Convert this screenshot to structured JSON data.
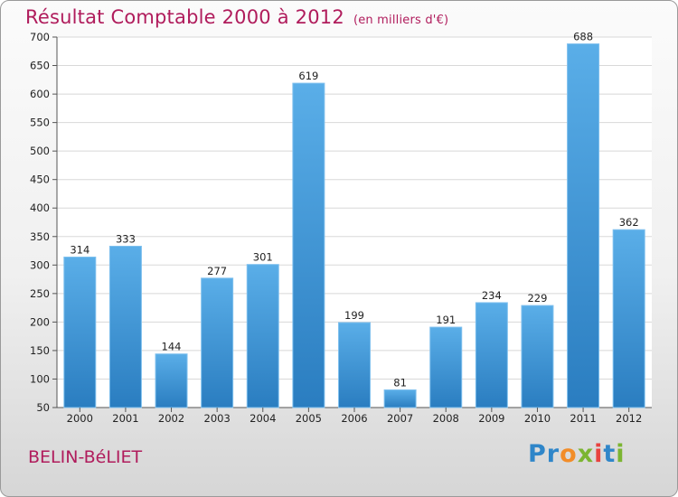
{
  "header": {
    "title": "Résultat Comptable 2000 à 2012",
    "unit": "(en milliers d'€)"
  },
  "footer": {
    "commune": "BELIN-BéLIET",
    "logo_text": "Proxiti"
  },
  "colors": {
    "title": "#b01c5c",
    "bar_light": "#5aaee8",
    "bar_dark": "#2a7dc0",
    "grid": "#d8d8d8",
    "plot_bg": "#ffffff"
  },
  "chart_data": {
    "type": "bar",
    "title": "Résultat Comptable 2000 à 2012",
    "subtitle": "(en milliers d'€)",
    "xlabel": "",
    "ylabel": "",
    "categories": [
      "2000",
      "2001",
      "2002",
      "2003",
      "2004",
      "2005",
      "2006",
      "2007",
      "2008",
      "2009",
      "2010",
      "2011",
      "2012"
    ],
    "values": [
      314,
      333,
      144,
      277,
      301,
      619,
      199,
      81,
      191,
      234,
      229,
      688,
      362
    ],
    "ylim": [
      50,
      700
    ],
    "yticks": [
      50,
      100,
      150,
      200,
      250,
      300,
      350,
      400,
      450,
      500,
      550,
      600,
      650,
      700
    ],
    "grid": true
  }
}
